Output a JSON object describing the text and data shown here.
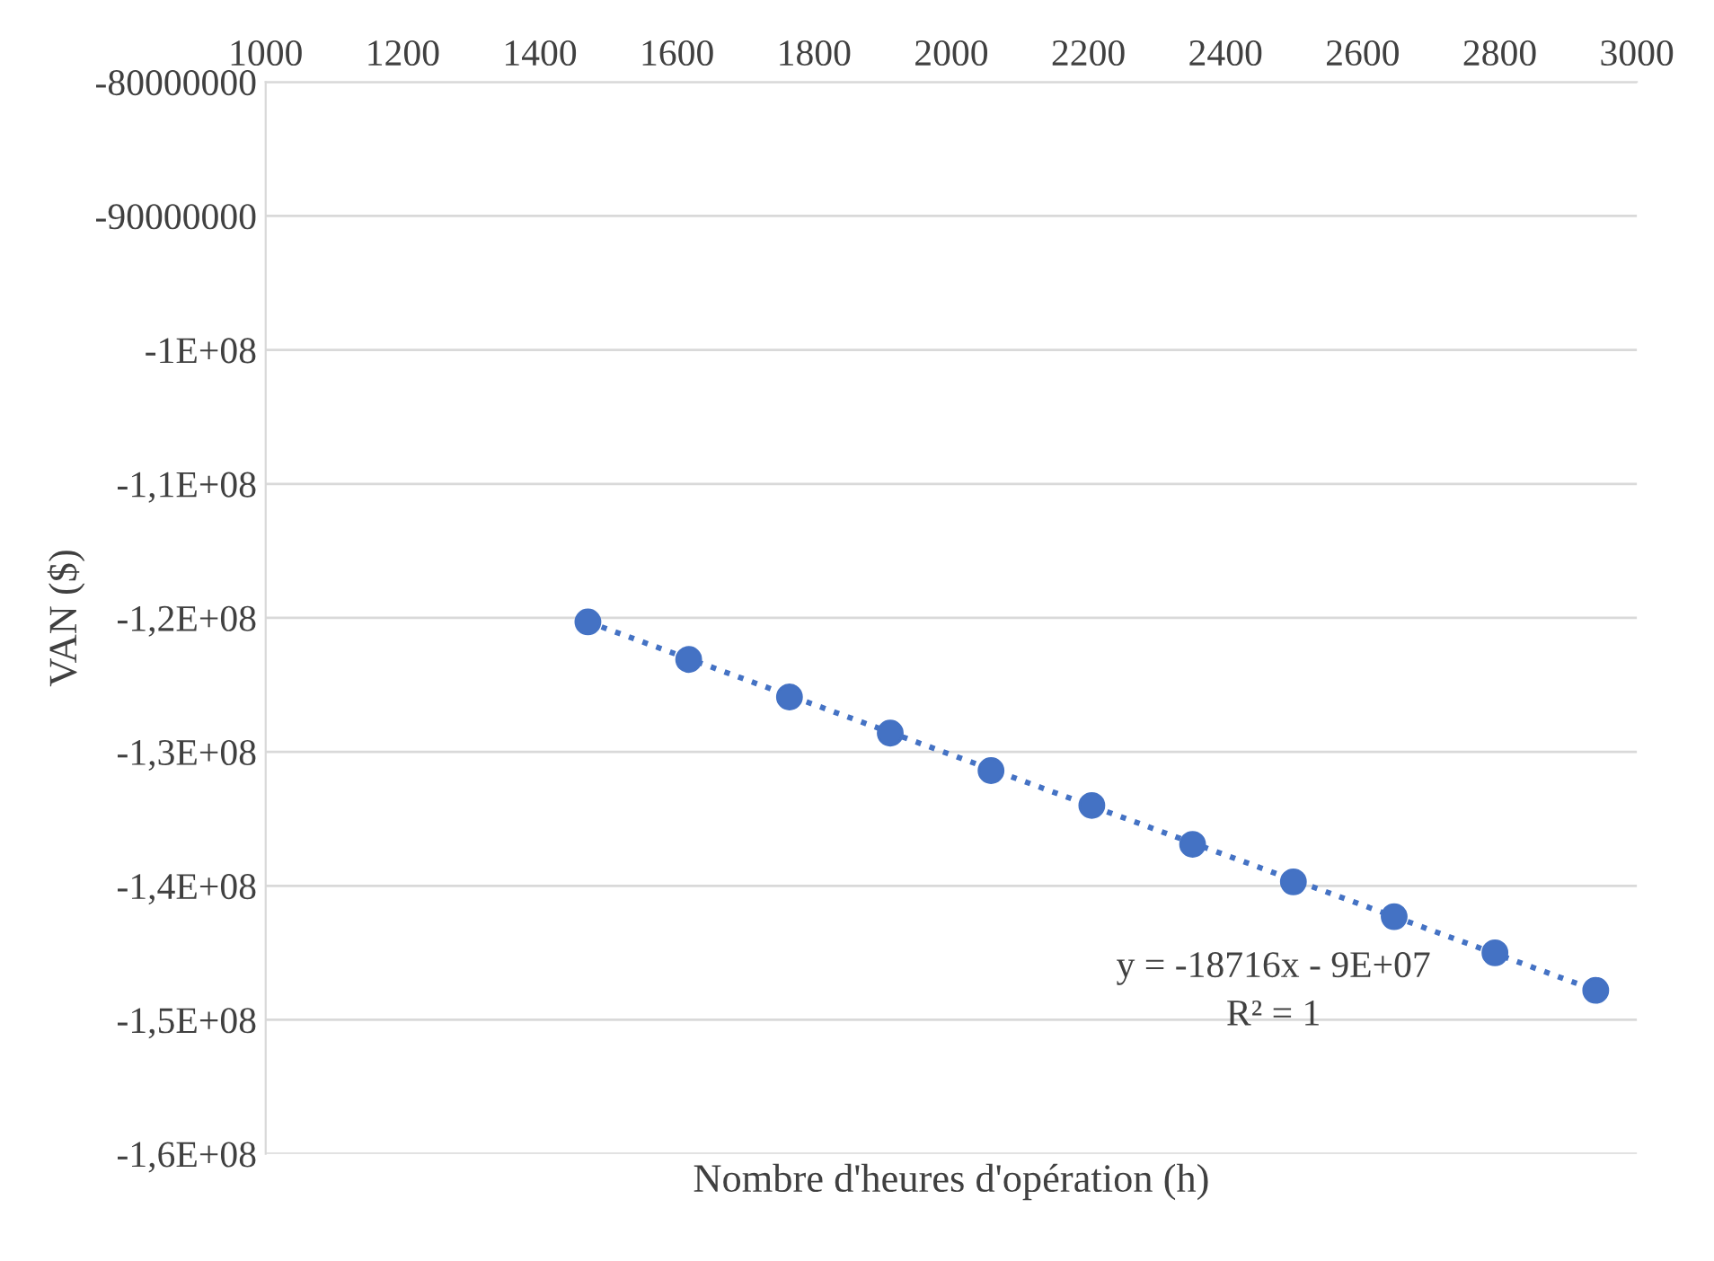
{
  "chart_data": {
    "type": "scatter",
    "xlabel": "Nombre d'heures d'opération (h)",
    "ylabel": "VAN ($)",
    "xlim": [
      1000,
      3000
    ],
    "xticks": [
      1000,
      1200,
      1400,
      1600,
      1800,
      2000,
      2200,
      2400,
      2600,
      2800,
      3000
    ],
    "ylim": [
      -160000000,
      -80000000
    ],
    "yticks": [
      {
        "value": -80000000,
        "label": "-80000000"
      },
      {
        "value": -90000000,
        "label": "-90000000"
      },
      {
        "value": -100000000,
        "label": "-1E+08"
      },
      {
        "value": -110000000,
        "label": "-1,1E+08"
      },
      {
        "value": -120000000,
        "label": "-1,2E+08"
      },
      {
        "value": -130000000,
        "label": "-1,3E+08"
      },
      {
        "value": -140000000,
        "label": "-1,4E+08"
      },
      {
        "value": -150000000,
        "label": "-1,5E+08"
      },
      {
        "value": -160000000,
        "label": "-1,6E+08"
      }
    ],
    "grid": "y",
    "legend": false,
    "series": [
      {
        "color": "#4472c4",
        "marker": "circle",
        "x": [
          1470,
          1617,
          1764,
          1911,
          2058,
          2205,
          2352,
          2499,
          2646,
          2793,
          2940
        ],
        "values": [
          -120300000,
          -123100000,
          -125900000,
          -128600000,
          -131400000,
          -134000000,
          -136900000,
          -139700000,
          -142300000,
          -145000000,
          -147800000
        ]
      },
      {
        "type": "line",
        "color": "#4472c4",
        "marker": "none",
        "line_style": "dotted",
        "x": [
          1470,
          2940
        ],
        "values": [
          -120300000,
          -147800000
        ]
      }
    ],
    "annotations": [
      "y = -18716x - 9E+07",
      "R² = 1"
    ]
  }
}
